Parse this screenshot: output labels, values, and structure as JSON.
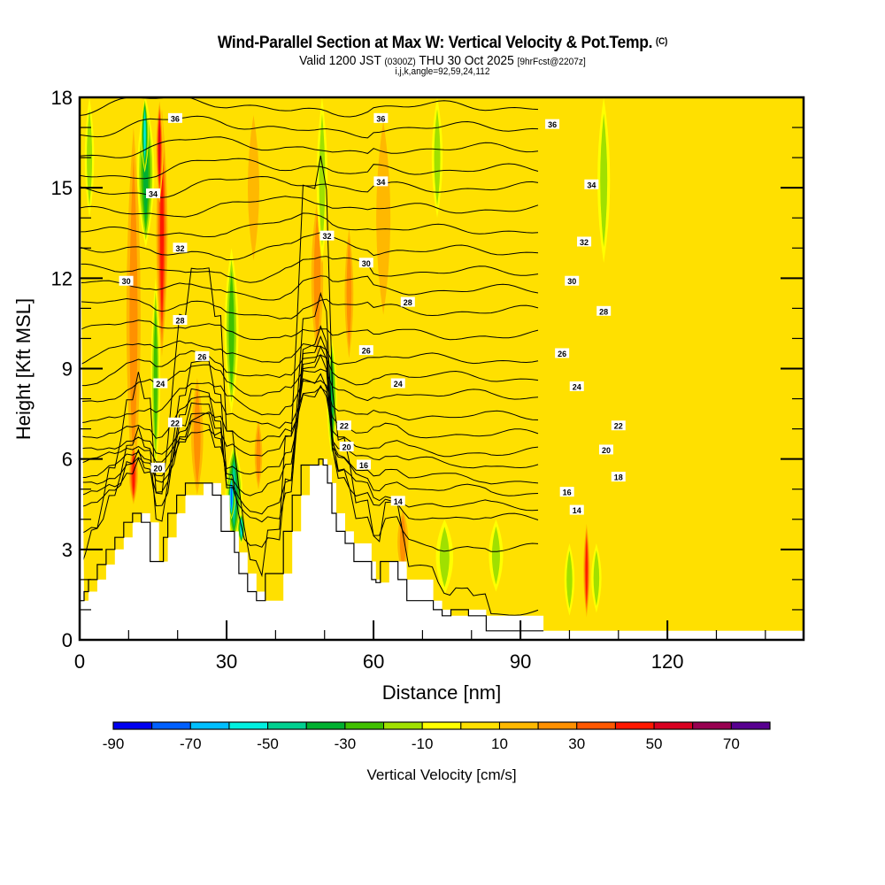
{
  "header": {
    "title": "Wind-Parallel Section at Max W: Vertical Velocity & Pot.Temp.",
    "copyright": "(C)",
    "valid_prefix": "Valid 1200 JST",
    "valid_utc": "(0300Z)",
    "valid_date": "THU 30 Oct 2025",
    "forecast": "[9hrFcst@2207z]",
    "indices": "i,j,k,angle=92,59,24,112"
  },
  "chart_data": {
    "type": "heatmap",
    "title": "Wind-Parallel Section at Max W: Vertical Velocity & Pot.Temp.",
    "xlabel": "Distance [nm]",
    "ylabel": "Height [Kft MSL]",
    "xlim": [
      0,
      147.8
    ],
    "ylim": [
      0,
      18
    ],
    "xticks": [
      0,
      30,
      60,
      90,
      120
    ],
    "xtick_labels": [
      "0",
      "30",
      "60",
      "90",
      "120"
    ],
    "xminor": [
      10,
      20,
      40,
      50,
      70,
      80,
      100,
      110,
      130,
      140
    ],
    "yticks": [
      0,
      3,
      6,
      9,
      12,
      15,
      18
    ],
    "ytick_labels": [
      "0",
      "3",
      "6",
      "9",
      "12",
      "15",
      "18"
    ],
    "yminor": [
      1,
      2,
      4,
      5,
      7,
      8,
      10,
      11,
      13,
      14,
      16,
      17
    ],
    "colorbar": {
      "title": "Vertical Velocity [cm/s]",
      "levels": [
        -90,
        -80,
        -70,
        -60,
        -50,
        -40,
        -30,
        -20,
        -10,
        0,
        10,
        20,
        30,
        40,
        50,
        60,
        70,
        80
      ],
      "tick_labels": [
        "-90",
        "-70",
        "-50",
        "-30",
        "-10",
        "10",
        "30",
        "50",
        "70"
      ],
      "tick_values": [
        -90,
        -70,
        -50,
        -30,
        -10,
        10,
        30,
        50,
        70
      ],
      "colors": [
        "#0000f0",
        "#0060ff",
        "#00bfff",
        "#00f0e0",
        "#00d090",
        "#00b030",
        "#40c000",
        "#a0e000",
        "#ffff00",
        "#ffe000",
        "#ffb800",
        "#ff9000",
        "#ff5800",
        "#ff1800",
        "#d80020",
        "#980050",
        "#580090"
      ]
    },
    "background_value": 0,
    "terrain": {
      "x": [
        0,
        0.9,
        0.9,
        1.8,
        1.8,
        3.6,
        3.6,
        5.4,
        5.4,
        7.2,
        7.2,
        9,
        9,
        10.8,
        10.8,
        12.6,
        12.6,
        14.4,
        14.4,
        16.2,
        16.2,
        17.1,
        17.1,
        18,
        18,
        19.8,
        19.8,
        21.6,
        21.6,
        25.3,
        25.3,
        27.1,
        27.1,
        28.9,
        28.9,
        30.7,
        30.7,
        31.6,
        31.6,
        32.5,
        32.5,
        34.3,
        34.3,
        36.1,
        36.1,
        37.9,
        37.9,
        41.6,
        41.6,
        43.4,
        43.4,
        45.2,
        45.2,
        47,
        47,
        48.8,
        48.8,
        49.7,
        49.7,
        50.6,
        50.6,
        51.5,
        51.5,
        52.4,
        52.4,
        54.2,
        54.2,
        56,
        56,
        59.6,
        59.6,
        60.5,
        60.5,
        61.4,
        61.4,
        63.2,
        63.2,
        64.1,
        64.1,
        65,
        65,
        66.8,
        66.8,
        72.2,
        72.2,
        74,
        74,
        75.8,
        75.8,
        79.4,
        79.4,
        83,
        83,
        94.7,
        94.7,
        147.8
      ],
      "y": [
        1.3,
        1.3,
        1.6,
        1.6,
        2.0,
        2.0,
        2.5,
        2.5,
        3.0,
        3.0,
        3.4,
        3.4,
        3.9,
        3.9,
        4.2,
        4.2,
        3.9,
        3.9,
        2.6,
        2.6,
        2.6,
        2.6,
        3.4,
        3.4,
        4.2,
        4.2,
        4.8,
        4.8,
        5.2,
        5.2,
        5.2,
        5.2,
        4.8,
        4.8,
        3.6,
        3.6,
        3.6,
        3.6,
        2.9,
        2.9,
        2.2,
        2.2,
        1.6,
        1.6,
        1.3,
        1.3,
        2.2,
        2.2,
        3.6,
        3.6,
        4.8,
        4.8,
        5.8,
        5.8,
        5.8,
        5.8,
        6.0,
        6.0,
        5.8,
        5.8,
        5.2,
        5.2,
        4.2,
        4.2,
        3.6,
        3.6,
        3.2,
        3.2,
        2.6,
        2.6,
        2.0,
        2.0,
        1.9,
        1.9,
        2.6,
        2.6,
        2.6,
        2.6,
        2.6,
        2.6,
        2.0,
        2.0,
        1.3,
        1.3,
        1.0,
        1.0,
        0.8,
        0.8,
        1.0,
        1.0,
        0.8,
        0.8,
        0.3,
        0.3
      ]
    },
    "velocity_features": [
      {
        "x": 11,
        "x_halfwidth": 2.6,
        "y0": 3.6,
        "y1": 18,
        "value": 25
      },
      {
        "x": 11,
        "x_halfwidth": 1.4,
        "y0": 4.4,
        "y1": 6.6,
        "value": 45
      },
      {
        "x": 16.8,
        "x_halfwidth": 1.8,
        "y0": 9,
        "y1": 18,
        "value": 45
      },
      {
        "x": 16.3,
        "x_halfwidth": 1.0,
        "y0": 14.5,
        "y1": 18,
        "value": 55
      },
      {
        "x": 13.5,
        "x_halfwidth": 2.2,
        "y0": 13,
        "y1": 18,
        "value": -35
      },
      {
        "x": 13.3,
        "x_halfwidth": 1.0,
        "y0": 15.5,
        "y1": 18,
        "value": -55
      },
      {
        "x": 15.5,
        "x_halfwidth": 1.2,
        "y0": 5.5,
        "y1": 12,
        "value": -25
      },
      {
        "x": 2,
        "x_halfwidth": 1.2,
        "y0": 14,
        "y1": 18,
        "value": -15
      },
      {
        "x": 24,
        "x_halfwidth": 2.2,
        "y0": 4.5,
        "y1": 9,
        "value": 25
      },
      {
        "x": 31,
        "x_halfwidth": 1.8,
        "y0": 7.5,
        "y1": 13,
        "value": -25
      },
      {
        "x": 31.5,
        "x_halfwidth": 2.2,
        "y0": 3.2,
        "y1": 6.5,
        "value": -45
      },
      {
        "x": 31,
        "x_halfwidth": 1.0,
        "y0": 4,
        "y1": 5.5,
        "value": -75
      },
      {
        "x": 33,
        "x_halfwidth": 1.0,
        "y0": 3.2,
        "y1": 4.2,
        "value": -55
      },
      {
        "x": 35.5,
        "x_halfwidth": 2.6,
        "y0": 12,
        "y1": 18,
        "value": 20
      },
      {
        "x": 36.5,
        "x_halfwidth": 1.4,
        "y0": 4.8,
        "y1": 7.5,
        "value": 25
      },
      {
        "x": 48.5,
        "x_halfwidth": 2.2,
        "y0": 9,
        "y1": 15,
        "value": 30
      },
      {
        "x": 49.5,
        "x_halfwidth": 1.4,
        "y0": 12.5,
        "y1": 18,
        "value": -15
      },
      {
        "x": 51.5,
        "x_halfwidth": 1.3,
        "y0": 6,
        "y1": 10,
        "value": -35
      },
      {
        "x": 55,
        "x_halfwidth": 1.6,
        "y0": 9,
        "y1": 14,
        "value": 25
      },
      {
        "x": 62,
        "x_halfwidth": 3.2,
        "y0": 10,
        "y1": 18,
        "value": 20
      },
      {
        "x": 66,
        "x_halfwidth": 2,
        "y0": 2,
        "y1": 4.5,
        "value": 25
      },
      {
        "x": 74.5,
        "x_halfwidth": 2.2,
        "y0": 1.5,
        "y1": 4,
        "value": -15
      },
      {
        "x": 73,
        "x_halfwidth": 1.4,
        "y0": 14,
        "y1": 18,
        "value": -15
      },
      {
        "x": 85,
        "x_halfwidth": 1.8,
        "y0": 1.6,
        "y1": 4,
        "value": -15
      },
      {
        "x": 100,
        "x_halfwidth": 1.3,
        "y0": 0.8,
        "y1": 3.2,
        "value": -15
      },
      {
        "x": 103.5,
        "x_halfwidth": 1.0,
        "y0": 0.6,
        "y1": 4,
        "value": 45
      },
      {
        "x": 105.5,
        "x_halfwidth": 1.3,
        "y0": 0.9,
        "y1": 3.2,
        "value": -15
      },
      {
        "x": 107,
        "x_halfwidth": 1.6,
        "y0": 12.5,
        "y1": 18,
        "value": -15
      },
      {
        "x": 119,
        "x_halfwidth": 2,
        "y0": 0.4,
        "y1": 9.5,
        "value": 5
      },
      {
        "x": 143,
        "x_halfwidth": 2.4,
        "y0": 11.5,
        "y1": 18,
        "value": 5
      },
      {
        "x": 131,
        "x_halfwidth": 2.6,
        "y0": 0.4,
        "y1": 4,
        "value": 5
      }
    ],
    "theta_contours": {
      "levels": [
        12,
        13,
        14,
        15,
        16,
        17,
        18,
        19,
        20,
        21,
        22,
        23,
        24,
        25,
        26,
        27,
        28,
        29,
        30,
        31,
        32,
        33,
        34,
        35,
        36,
        37
      ],
      "heights_right": [
        0.9,
        3.0,
        4.0,
        4.4,
        4.9,
        5.3,
        5.8,
        6.2,
        6.8,
        7.4,
        8.1,
        8.7,
        9.3,
        10.1,
        10.9,
        11.6,
        12.2,
        12.9,
        13.6,
        14.3,
        15.0,
        15.6,
        16.3,
        17.0,
        17.7,
        18.4
      ]
    },
    "contour_labels": [
      {
        "text": "36",
        "x": 19.5,
        "y": 17.3
      },
      {
        "text": "34",
        "x": 15,
        "y": 14.8
      },
      {
        "text": "32",
        "x": 20.5,
        "y": 13.0
      },
      {
        "text": "30",
        "x": 9.5,
        "y": 11.9
      },
      {
        "text": "28",
        "x": 20.5,
        "y": 10.6
      },
      {
        "text": "26",
        "x": 25,
        "y": 9.4
      },
      {
        "text": "24",
        "x": 16.5,
        "y": 8.5
      },
      {
        "text": "22",
        "x": 19.5,
        "y": 7.2
      },
      {
        "text": "20",
        "x": 16,
        "y": 5.7
      },
      {
        "text": "36",
        "x": 61.5,
        "y": 17.3
      },
      {
        "text": "34",
        "x": 61.5,
        "y": 15.2
      },
      {
        "text": "32",
        "x": 50.5,
        "y": 13.4
      },
      {
        "text": "30",
        "x": 58.5,
        "y": 12.5
      },
      {
        "text": "28",
        "x": 67,
        "y": 11.2
      },
      {
        "text": "26",
        "x": 58.5,
        "y": 9.6
      },
      {
        "text": "24",
        "x": 65,
        "y": 8.5
      },
      {
        "text": "22",
        "x": 54,
        "y": 7.1
      },
      {
        "text": "20",
        "x": 54.5,
        "y": 6.4
      },
      {
        "text": "16",
        "x": 58,
        "y": 5.8
      },
      {
        "text": "14",
        "x": 65,
        "y": 4.6
      },
      {
        "text": "36",
        "x": 96.5,
        "y": 17.1
      },
      {
        "text": "34",
        "x": 104.5,
        "y": 15.1
      },
      {
        "text": "32",
        "x": 103,
        "y": 13.2
      },
      {
        "text": "30",
        "x": 100.5,
        "y": 11.9
      },
      {
        "text": "28",
        "x": 107,
        "y": 10.9
      },
      {
        "text": "26",
        "x": 98.5,
        "y": 9.5
      },
      {
        "text": "24",
        "x": 101.5,
        "y": 8.4
      },
      {
        "text": "22",
        "x": 110,
        "y": 7.1
      },
      {
        "text": "20",
        "x": 107.5,
        "y": 6.3
      },
      {
        "text": "18",
        "x": 110,
        "y": 5.4
      },
      {
        "text": "16",
        "x": 99.5,
        "y": 4.9
      },
      {
        "text": "14",
        "x": 101.5,
        "y": 4.3
      }
    ]
  }
}
